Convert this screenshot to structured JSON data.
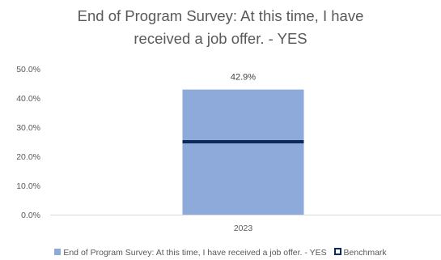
{
  "chart_data": {
    "type": "bar",
    "title_lines": [
      "End of Program Survey: At this time, I have",
      "received a job offer. - YES"
    ],
    "categories": [
      "2023"
    ],
    "series": [
      {
        "name": "End of Program Survey: At this time, I have received a job offer. - YES",
        "values": [
          42.9
        ],
        "color": "#8eaadb",
        "data_labels": [
          "42.9%"
        ]
      }
    ],
    "benchmark": {
      "name": "Benchmark",
      "values": [
        25.0
      ],
      "color": "#0b2a5b"
    },
    "ylim": [
      0,
      50
    ],
    "yticks": [
      0,
      10,
      20,
      30,
      40,
      50
    ],
    "ytick_labels": [
      "0.0%",
      "10.0%",
      "20.0%",
      "30.0%",
      "40.0%",
      "50.0%"
    ],
    "legend_position": "bottom",
    "grid": false
  }
}
